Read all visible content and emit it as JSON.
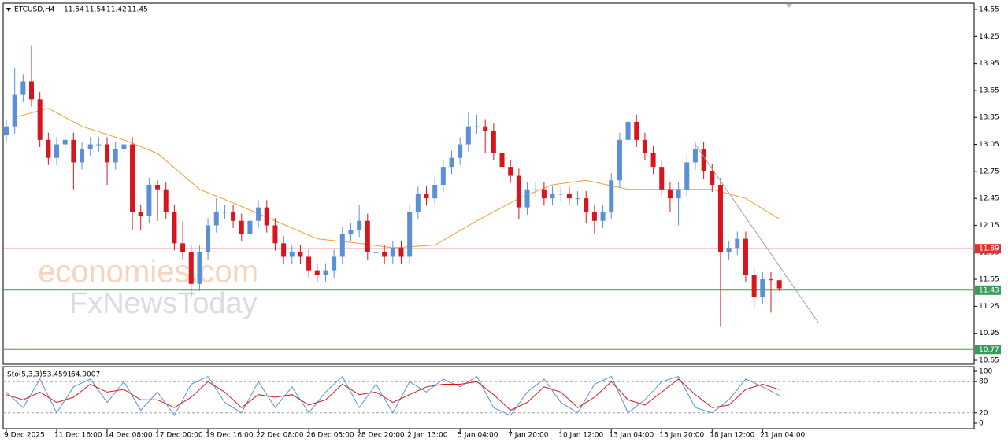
{
  "chart_data": {
    "type": "candlestick",
    "title": "ETCUSD,H4",
    "last": {
      "open": 11.54,
      "high": 11.54,
      "low": 11.42,
      "close": 11.45
    },
    "watermark": [
      "economies.com",
      "FxNewsToday"
    ],
    "up_color": "#5b8fd8",
    "down_color": "#d8141c",
    "open": [
      13.15,
      13.25,
      13.6,
      13.75,
      13.55,
      13.1,
      12.9,
      13.05,
      13.1,
      12.85,
      13.0,
      13.05,
      13.05,
      12.85,
      13.0,
      13.05,
      12.3,
      12.25,
      12.6,
      12.55,
      12.3,
      11.95,
      11.85,
      11.5,
      11.85,
      12.15,
      12.3,
      12.3,
      12.2,
      12.05,
      12.2,
      12.35,
      12.15,
      11.95,
      11.8,
      11.85,
      11.8,
      11.65,
      11.6,
      11.65,
      11.8,
      12.05,
      12.1,
      12.2,
      11.85,
      11.85,
      11.8,
      11.9,
      11.8,
      12.3,
      12.5,
      12.45,
      12.6,
      12.8,
      12.9,
      13.05,
      13.25,
      13.25,
      13.2,
      12.95,
      12.8,
      12.7,
      12.35,
      12.55,
      12.55,
      12.45,
      12.5,
      12.5,
      12.45,
      12.45,
      12.3,
      12.2,
      12.3,
      12.65,
      13.1,
      13.3,
      13.1,
      12.95,
      12.8,
      12.55,
      12.45,
      12.55,
      12.85,
      13.0,
      12.75,
      12.6,
      11.85,
      11.9,
      12.0,
      11.6,
      11.35,
      11.55,
      11.54
    ],
    "high": [
      13.33,
      13.9,
      13.83,
      14.15,
      13.63,
      13.18,
      13.13,
      13.18,
      13.18,
      13.08,
      13.13,
      13.13,
      13.13,
      13.08,
      13.13,
      13.13,
      12.38,
      12.68,
      12.65,
      12.63,
      12.38,
      12.2,
      11.93,
      11.93,
      12.23,
      12.45,
      12.38,
      12.38,
      12.28,
      12.28,
      12.43,
      12.43,
      12.23,
      12.03,
      11.93,
      11.93,
      11.88,
      11.73,
      11.73,
      11.88,
      12.13,
      12.18,
      12.38,
      12.28,
      11.93,
      11.93,
      11.98,
      11.98,
      12.38,
      12.58,
      12.58,
      12.68,
      12.88,
      12.98,
      13.13,
      13.4,
      13.38,
      13.33,
      13.28,
      13.03,
      12.88,
      12.78,
      12.63,
      12.63,
      12.63,
      12.58,
      12.58,
      12.58,
      12.53,
      12.53,
      12.38,
      12.38,
      12.73,
      13.18,
      13.37,
      13.38,
      13.18,
      13.03,
      12.88,
      12.63,
      12.63,
      12.93,
      13.08,
      13.08,
      12.83,
      12.68,
      11.98,
      12.08,
      12.08,
      11.68,
      11.63,
      11.63,
      11.54
    ],
    "low": [
      13.07,
      13.17,
      13.52,
      13.47,
      13.02,
      12.82,
      12.82,
      12.97,
      12.55,
      12.77,
      12.92,
      12.97,
      12.6,
      12.77,
      12.97,
      12.1,
      12.1,
      12.17,
      12.2,
      12.22,
      11.87,
      11.77,
      11.35,
      11.42,
      11.77,
      12.07,
      12.22,
      12.12,
      11.97,
      11.97,
      12.12,
      12.07,
      11.87,
      11.72,
      11.72,
      11.72,
      11.57,
      11.52,
      11.52,
      11.57,
      11.72,
      11.97,
      12.02,
      11.77,
      11.77,
      11.72,
      11.72,
      11.72,
      11.72,
      12.22,
      12.37,
      12.37,
      12.52,
      12.72,
      12.82,
      12.97,
      13.17,
      12.95,
      12.87,
      12.72,
      12.62,
      12.22,
      12.27,
      12.47,
      12.37,
      12.37,
      12.42,
      12.37,
      12.37,
      12.17,
      12.05,
      12.12,
      12.22,
      12.57,
      13.02,
      13.02,
      12.87,
      12.72,
      12.47,
      12.3,
      12.15,
      12.47,
      12.77,
      12.67,
      12.52,
      11.02,
      11.77,
      11.82,
      11.52,
      11.22,
      11.27,
      11.18,
      11.42
    ],
    "close": [
      13.25,
      13.6,
      13.75,
      13.55,
      13.1,
      12.9,
      13.05,
      13.1,
      12.85,
      13.0,
      13.05,
      13.05,
      12.85,
      13.0,
      13.05,
      12.3,
      12.25,
      12.6,
      12.55,
      12.3,
      11.95,
      11.85,
      11.5,
      11.85,
      12.15,
      12.3,
      12.3,
      12.2,
      12.05,
      12.2,
      12.35,
      12.15,
      11.95,
      11.8,
      11.85,
      11.8,
      11.65,
      11.6,
      11.65,
      11.8,
      12.05,
      12.1,
      12.2,
      11.85,
      11.85,
      11.8,
      11.9,
      11.8,
      12.3,
      12.5,
      12.45,
      12.6,
      12.8,
      12.9,
      13.05,
      13.25,
      13.25,
      13.2,
      12.95,
      12.8,
      12.7,
      12.35,
      12.55,
      12.55,
      12.45,
      12.5,
      12.5,
      12.45,
      12.45,
      12.3,
      12.2,
      12.3,
      12.65,
      13.1,
      13.3,
      13.1,
      12.95,
      12.8,
      12.55,
      12.45,
      12.55,
      12.85,
      13.0,
      12.75,
      12.6,
      11.85,
      11.9,
      12.0,
      11.6,
      11.35,
      11.55,
      11.54,
      11.45
    ],
    "ma": {
      "color": "#f0a030",
      "x": [
        1,
        5,
        9,
        14,
        18,
        23,
        27,
        32,
        37,
        42,
        46,
        51,
        56,
        61,
        65,
        69,
        74,
        79,
        84,
        88,
        92
      ],
      "values": [
        13.35,
        13.45,
        13.25,
        13.1,
        12.95,
        12.55,
        12.4,
        12.2,
        12.0,
        11.95,
        11.9,
        11.93,
        12.2,
        12.45,
        12.6,
        12.65,
        12.55,
        12.55,
        12.55,
        12.45,
        12.22
      ]
    },
    "trendline": {
      "color": "#a0a0a0",
      "x": [
        82,
        96.7
      ],
      "values": [
        13.05,
        11.06
      ]
    },
    "levels": [
      {
        "value": 11.89,
        "color": "#e03030"
      },
      {
        "value": 11.43,
        "color": "#3a9a5a"
      },
      {
        "value": 10.77,
        "color": "#3a9a5a"
      }
    ],
    "ylim": [
      10.65,
      14.55
    ],
    "yticks": [
      14.55,
      14.25,
      13.95,
      13.65,
      13.35,
      13.05,
      12.75,
      12.45,
      12.15,
      11.85,
      11.55,
      11.25,
      10.95,
      10.65
    ],
    "xticks": [
      {
        "value": 0,
        "label": "9 Dec 2025"
      },
      {
        "value": 6,
        "label": "11 Dec 16:00"
      },
      {
        "value": 12,
        "label": "14 Dec 08:00"
      },
      {
        "value": 18,
        "label": "17 Dec 00:00"
      },
      {
        "value": 24,
        "label": "19 Dec 16:00"
      },
      {
        "value": 30,
        "label": "22 Dec 08:00"
      },
      {
        "value": 36,
        "label": "26 Dec 05:00"
      },
      {
        "value": 42,
        "label": "28 Dec 20:00"
      },
      {
        "value": 48,
        "label": "2 Jan 13:00"
      },
      {
        "value": 54,
        "label": "5 Jan 04:00"
      },
      {
        "value": 60,
        "label": "7 Jan 20:00"
      },
      {
        "value": 66,
        "label": "10 Jan 12:00"
      },
      {
        "value": 72,
        "label": "13 Jan 04:00"
      },
      {
        "value": 78,
        "label": "15 Jan 20:00"
      },
      {
        "value": 84,
        "label": "18 Jan 12:00"
      },
      {
        "value": 90,
        "label": "21 Jan 04:00"
      }
    ],
    "stochastic": {
      "label": "Sto(5,3,3)",
      "ylim": [
        0,
        100
      ],
      "yticks": [
        100,
        80,
        20,
        0
      ],
      "levels": [
        80,
        20
      ],
      "x": [
        0,
        2,
        4,
        6,
        8,
        10,
        12,
        14,
        16,
        18,
        20,
        22,
        24,
        26,
        28,
        30,
        32,
        34,
        36,
        38,
        40,
        42,
        44,
        46,
        48,
        50,
        52,
        54,
        56,
        58,
        60,
        62,
        64,
        66,
        68,
        70,
        72,
        74,
        76,
        78,
        80,
        82,
        84,
        86,
        88,
        90,
        92
      ],
      "k": {
        "color": "#5b8fd8",
        "values": [
          60,
          30,
          85,
          20,
          70,
          85,
          40,
          80,
          25,
          60,
          15,
          75,
          90,
          40,
          20,
          80,
          30,
          70,
          20,
          60,
          90,
          30,
          75,
          20,
          80,
          60,
          85,
          70,
          90,
          30,
          15,
          60,
          85,
          40,
          20,
          75,
          90,
          20,
          45,
          80,
          90,
          30,
          20,
          45,
          85,
          70,
          53.4591
        ]
      },
      "d": {
        "color": "#d8141c",
        "values": [
          55,
          45,
          60,
          40,
          50,
          75,
          60,
          65,
          45,
          45,
          30,
          50,
          80,
          60,
          30,
          55,
          50,
          55,
          35,
          45,
          75,
          55,
          60,
          40,
          55,
          70,
          75,
          75,
          80,
          55,
          25,
          40,
          70,
          60,
          30,
          50,
          80,
          45,
          35,
          60,
          85,
          55,
          30,
          35,
          65,
          75,
          64.9007
        ]
      }
    }
  }
}
